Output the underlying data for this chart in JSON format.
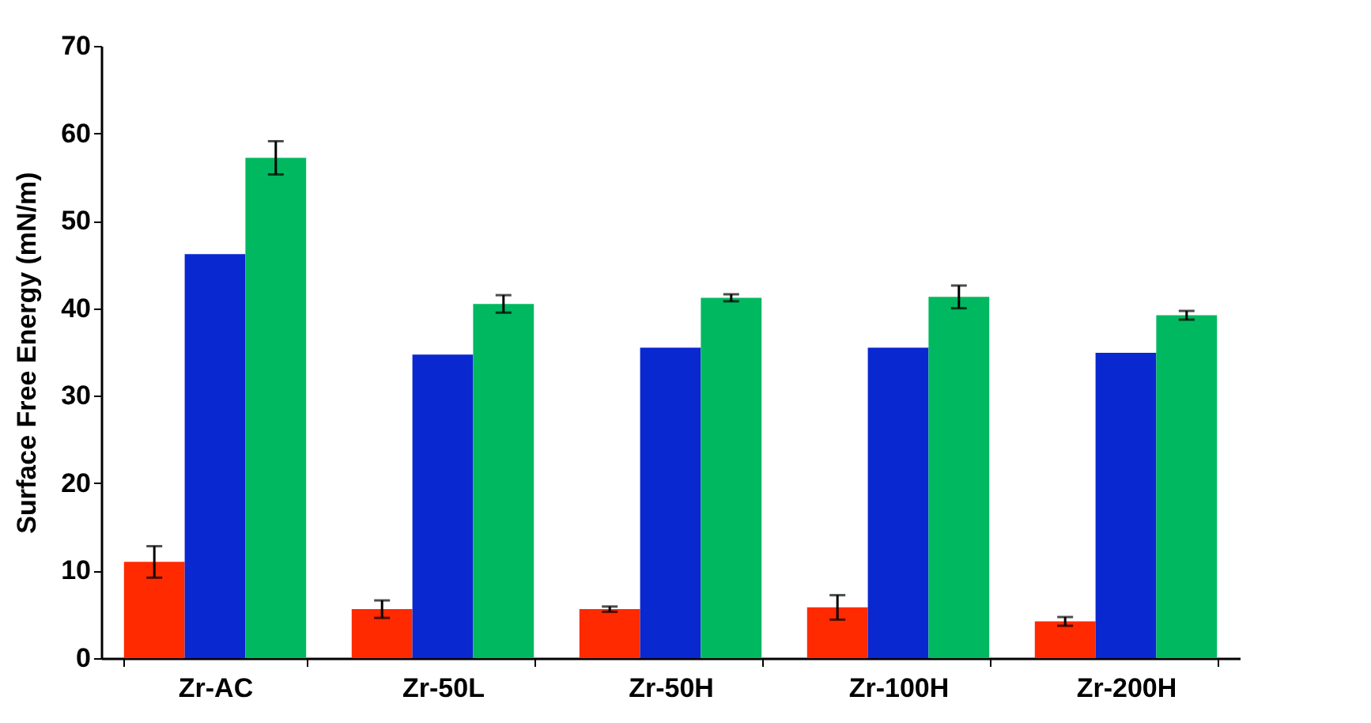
{
  "chart_data": {
    "type": "bar",
    "ylabel": "Surface Free Energy (mN/m)",
    "categories": [
      "Zr-AC",
      "Zr-50L",
      "Zr-50H",
      "Zr-100H",
      "Zr-200H"
    ],
    "series": [
      {
        "color": "#ff2a00",
        "values": [
          11.0,
          5.6,
          5.6,
          5.8,
          4.2
        ],
        "errors": [
          1.8,
          1.0,
          0.3,
          1.4,
          0.5
        ]
      },
      {
        "color": "#0a28d0",
        "values": [
          46.2,
          34.7,
          35.5,
          35.5,
          34.9
        ],
        "errors": [
          null,
          null,
          null,
          null,
          null
        ]
      },
      {
        "color": "#00b860",
        "values": [
          57.2,
          40.5,
          41.2,
          41.3,
          39.2
        ],
        "errors": [
          1.9,
          1.0,
          0.4,
          1.3,
          0.5
        ]
      }
    ],
    "ylim": [
      0,
      70
    ],
    "yticks": [
      0,
      10,
      20,
      30,
      40,
      50,
      60,
      70
    ],
    "grid": false,
    "legend": false
  }
}
